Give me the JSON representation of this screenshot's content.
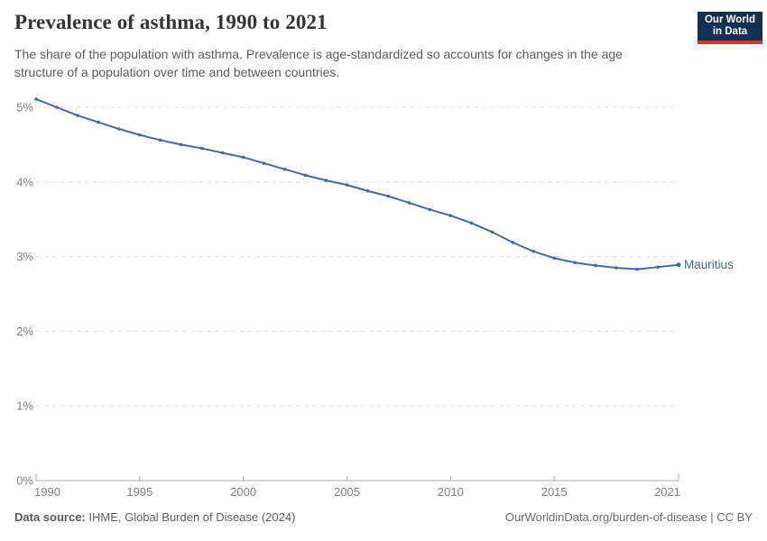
{
  "header": {
    "title": "Prevalence of asthma, 1990 to 2021",
    "subtitle": "The share of the population with asthma. Prevalence is age-standardized so accounts for changes in the age structure of a population over time and between countries."
  },
  "logo": {
    "line1": "Our World",
    "line2": "in Data",
    "bg_color": "#132f52",
    "accent_color": "#dc3328"
  },
  "chart_data": {
    "type": "line",
    "title": "Prevalence of asthma, 1990 to 2021",
    "x": [
      1990,
      1991,
      1992,
      1993,
      1994,
      1995,
      1996,
      1997,
      1998,
      1999,
      2000,
      2001,
      2002,
      2003,
      2004,
      2005,
      2006,
      2007,
      2008,
      2009,
      2010,
      2011,
      2012,
      2013,
      2014,
      2015,
      2016,
      2017,
      2018,
      2019,
      2020,
      2021
    ],
    "series": [
      {
        "name": "Mauritius",
        "color": "#4668a3",
        "values": [
          5.11,
          5.0,
          4.89,
          4.8,
          4.71,
          4.63,
          4.56,
          4.5,
          4.45,
          4.39,
          4.33,
          4.25,
          4.17,
          4.09,
          4.02,
          3.96,
          3.88,
          3.81,
          3.72,
          3.63,
          3.55,
          3.45,
          3.33,
          3.19,
          3.07,
          2.98,
          2.92,
          2.88,
          2.85,
          2.83,
          2.86,
          2.89
        ]
      }
    ],
    "entity_label": "Mauritius",
    "xticks": [
      1990,
      1995,
      2000,
      2005,
      2010,
      2015,
      2021
    ],
    "yticks": [
      0,
      1,
      2,
      3,
      4,
      5
    ],
    "ytick_suffix": "%",
    "xlim": [
      1990,
      2021
    ],
    "ylim": [
      0,
      5.35
    ],
    "grid": "horizontal-dashed",
    "legend_position": "end-of-line",
    "colors": {
      "gridline": "#dedede",
      "axis": "#a8a8a8",
      "tick_label": "#808080",
      "line": "#4668a3"
    }
  },
  "footer": {
    "source_label": "Data source:",
    "source_text": " IHME, Global Burden of Disease (2024)",
    "license_text": "OurWorldinData.org/burden-of-disease | CC BY"
  }
}
